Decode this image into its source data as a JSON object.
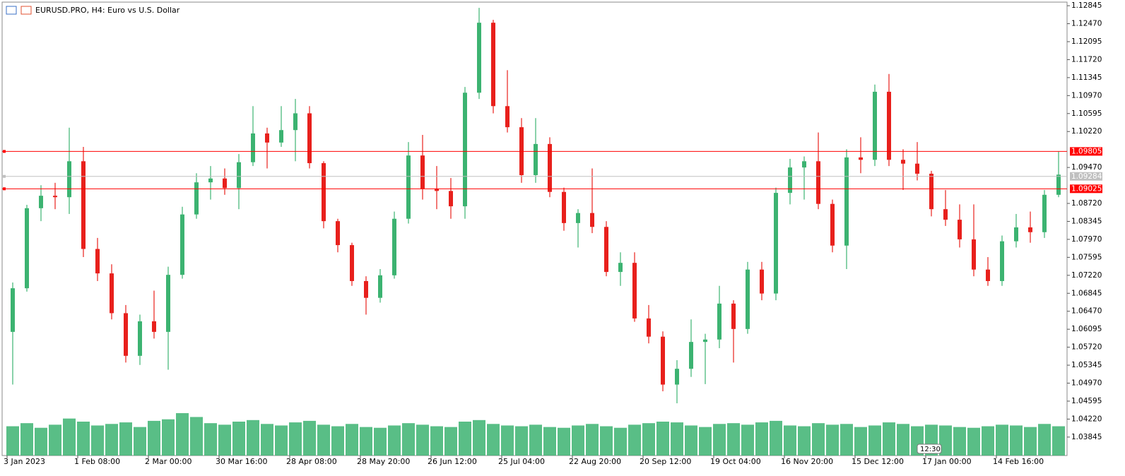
{
  "chart_data": {
    "type": "candlestick",
    "title": "EURUSD.PRO, H4:  Euro vs U.S. Dollar",
    "categories": [
      "3 Jan 2023",
      null,
      null,
      null,
      null,
      "1 Feb 08:00",
      null,
      null,
      null,
      null,
      "2 Mar 00:00",
      null,
      null,
      null,
      null,
      "30 Mar 16:00",
      null,
      null,
      null,
      null,
      "28 Apr 08:00",
      null,
      null,
      null,
      null,
      "28 May 20:00",
      null,
      null,
      null,
      null,
      "26 Jun 12:00",
      null,
      null,
      null,
      null,
      "25 Jul 04:00",
      null,
      null,
      null,
      null,
      "22 Aug 20:00",
      null,
      null,
      null,
      null,
      "20 Sep 12:00",
      null,
      null,
      null,
      null,
      "19 Oct 04:00",
      null,
      null,
      null,
      null,
      "16 Nov 20:00",
      null,
      null,
      null,
      null,
      "15 Dec 12:00",
      null,
      null,
      null,
      null,
      "17 Jan 00:00",
      null,
      null,
      null,
      null,
      "14 Feb 16:00",
      null,
      null,
      null,
      null
    ],
    "open": [
      1.0604,
      1.0695,
      1.0862,
      1.0888,
      1.0885,
      1.096,
      1.0777,
      1.0726,
      1.0643,
      1.0554,
      1.0626,
      1.0604,
      1.0723,
      1.0849,
      1.0916,
      1.0924,
      1.0904,
      1.0958,
      1.1018,
      1.0999,
      1.1025,
      1.106,
      1.0956,
      1.0835,
      1.0785,
      1.071,
      1.0675,
      1.0722,
      1.084,
      1.0972,
      1.0903,
      1.0898,
      1.0866,
      1.1103,
      1.1249,
      1.1075,
      1.1031,
      1.0931,
      1.0996,
      1.0896,
      1.0831,
      1.0852,
      1.0823,
      1.0729,
      1.0748,
      1.0632,
      1.0594,
      1.0494,
      1.0527,
      1.0583,
      1.0588,
      1.0663,
      1.061,
      1.0734,
      1.0684,
      1.0894,
      1.0947,
      1.096,
      1.0871,
      1.0784,
      1.0968,
      1.0963,
      1.1105,
      1.0963,
      1.0955,
      1.0934,
      1.086,
      1.0838,
      1.0797,
      1.0734,
      1.071,
      1.0793,
      1.0822,
      1.0812,
      1.089
    ],
    "high": [
      1.0707,
      1.0869,
      1.091,
      1.0915,
      1.103,
      1.099,
      1.08,
      1.0745,
      1.066,
      1.064,
      1.069,
      1.074,
      1.0865,
      1.0935,
      1.095,
      1.0945,
      1.0975,
      1.1075,
      1.103,
      1.1075,
      1.109,
      1.1075,
      1.096,
      1.084,
      1.079,
      1.072,
      1.0735,
      1.0855,
      1.1,
      1.1015,
      1.095,
      1.0925,
      1.1115,
      1.128,
      1.1255,
      1.115,
      1.105,
      1.105,
      1.101,
      1.0905,
      1.086,
      1.0945,
      1.0835,
      1.077,
      1.077,
      1.066,
      1.0605,
      1.0545,
      1.063,
      1.06,
      1.07,
      1.067,
      1.075,
      1.075,
      1.0905,
      1.0965,
      1.097,
      1.102,
      1.088,
      1.0985,
      1.101,
      1.112,
      1.1142,
      1.0985,
      1.1,
      1.094,
      1.09,
      1.087,
      1.087,
      1.076,
      1.0805,
      1.085,
      1.0855,
      1.09,
      1.098
    ],
    "low": [
      1.0494,
      1.0688,
      1.0835,
      1.086,
      1.085,
      1.076,
      1.071,
      1.063,
      1.054,
      1.0535,
      1.059,
      1.0525,
      1.0715,
      1.084,
      1.088,
      1.089,
      1.086,
      1.095,
      1.0945,
      1.099,
      1.096,
      1.0945,
      1.082,
      1.077,
      1.07,
      1.064,
      1.0665,
      1.0715,
      1.083,
      1.088,
      1.086,
      1.084,
      1.084,
      1.109,
      1.106,
      1.102,
      1.0915,
      1.0915,
      1.0885,
      1.0815,
      1.078,
      1.081,
      1.072,
      1.07,
      1.0625,
      1.058,
      1.048,
      1.0455,
      1.051,
      1.0495,
      1.057,
      1.054,
      1.06,
      1.067,
      1.067,
      1.087,
      1.088,
      1.086,
      1.077,
      1.0735,
      1.0935,
      1.095,
      1.095,
      1.09,
      1.092,
      1.0845,
      1.0825,
      1.078,
      1.072,
      1.07,
      1.07,
      1.078,
      1.079,
      1.08,
      1.0885
    ],
    "close": [
      1.0695,
      1.0862,
      1.0888,
      1.0885,
      1.096,
      1.0777,
      1.0726,
      1.0643,
      1.0554,
      1.0626,
      1.0604,
      1.0723,
      1.0849,
      1.0916,
      1.0924,
      1.0904,
      1.0958,
      1.1018,
      1.0999,
      1.1025,
      1.106,
      1.0956,
      1.0835,
      1.0785,
      1.071,
      1.0675,
      1.0722,
      1.084,
      1.0972,
      1.0903,
      1.0898,
      1.0866,
      1.1103,
      1.1249,
      1.1075,
      1.1031,
      1.0931,
      1.0996,
      1.0896,
      1.0831,
      1.0852,
      1.0823,
      1.0729,
      1.0748,
      1.0632,
      1.0594,
      1.0494,
      1.0527,
      1.0583,
      1.0588,
      1.0663,
      1.061,
      1.0734,
      1.0684,
      1.0894,
      1.0947,
      1.096,
      1.0871,
      1.0784,
      1.0968,
      1.0963,
      1.1105,
      1.0963,
      1.0955,
      1.0934,
      1.086,
      1.0838,
      1.0797,
      1.0734,
      1.071,
      1.0793,
      1.0822,
      1.0812,
      1.089,
      1.0932
    ],
    "volume": [
      38000,
      42000,
      36000,
      40000,
      48000,
      44000,
      39000,
      41000,
      43000,
      37000,
      45000,
      47000,
      55000,
      50000,
      42000,
      40000,
      44000,
      46000,
      41000,
      39000,
      43000,
      45000,
      40000,
      38000,
      41000,
      37000,
      36000,
      39000,
      42000,
      40000,
      38000,
      37000,
      44000,
      46000,
      41000,
      39000,
      38000,
      40000,
      37000,
      36000,
      39000,
      41000,
      38000,
      36000,
      40000,
      42000,
      44000,
      43000,
      39000,
      37000,
      41000,
      42000,
      40000,
      43000,
      45000,
      39000,
      38000,
      42000,
      40000,
      41000,
      37000,
      39000,
      43000,
      41000,
      38000,
      40000,
      39000,
      37000,
      36000,
      38000,
      40000,
      39000,
      37000,
      41000,
      38000
    ],
    "up_color": "#3cb371",
    "down_color": "#e8201c",
    "volume_color": "#3cb371",
    "ylim": [
      1.0346,
      1.1292
    ],
    "yticks": [
      1.12845,
      {
        "value": 1.1247,
        "label": "1.12470"
      },
      1.12095,
      {
        "value": 1.1172,
        "label": "1.11720"
      },
      1.11345,
      {
        "value": 1.1097,
        "label": "1.10970"
      },
      1.10595,
      {
        "value": 1.1022,
        "label": "1.10220"
      },
      {
        "value": 1.0947,
        "label": "1.09470"
      },
      {
        "value": 1.0872,
        "label": "1.08720"
      },
      1.08345,
      {
        "value": 1.0797,
        "label": "1.07970"
      },
      1.07595,
      {
        "value": 1.0722,
        "label": "1.07220"
      },
      1.06845,
      {
        "value": 1.0647,
        "label": "1.06470"
      },
      1.06095,
      {
        "value": 1.0572,
        "label": "1.05720"
      },
      1.05345,
      {
        "value": 1.0497,
        "label": "1.04970"
      },
      1.04595,
      {
        "value": 1.0422,
        "label": "1.04220"
      },
      1.03845
    ],
    "hlines": [
      {
        "value": 1.09805,
        "color": "#ff0000"
      },
      {
        "value": 1.09284,
        "color": "#c0c0c0"
      },
      {
        "value": 1.09025,
        "color": "#ff0000"
      }
    ],
    "time_marker": "12:30"
  }
}
